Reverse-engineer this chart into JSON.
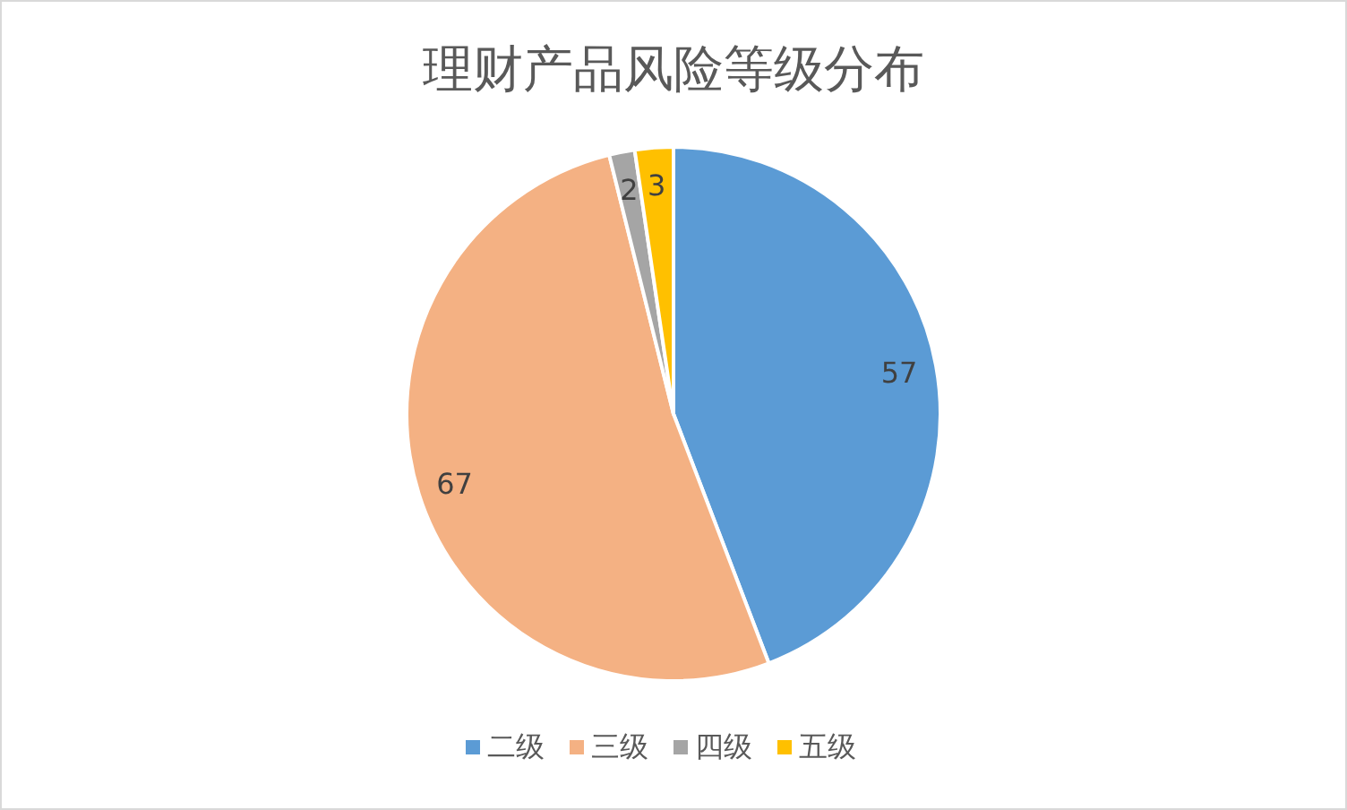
{
  "chart_data": {
    "type": "pie",
    "title": "理财产品风险等级分布",
    "categories": [
      "二级",
      "三级",
      "四级",
      "五级"
    ],
    "values": [
      57,
      67,
      2,
      3
    ],
    "colors": [
      "#5b9bd5",
      "#f4b183",
      "#a5a5a5",
      "#ffc000"
    ],
    "data_labels": true,
    "legend": "bottom"
  }
}
